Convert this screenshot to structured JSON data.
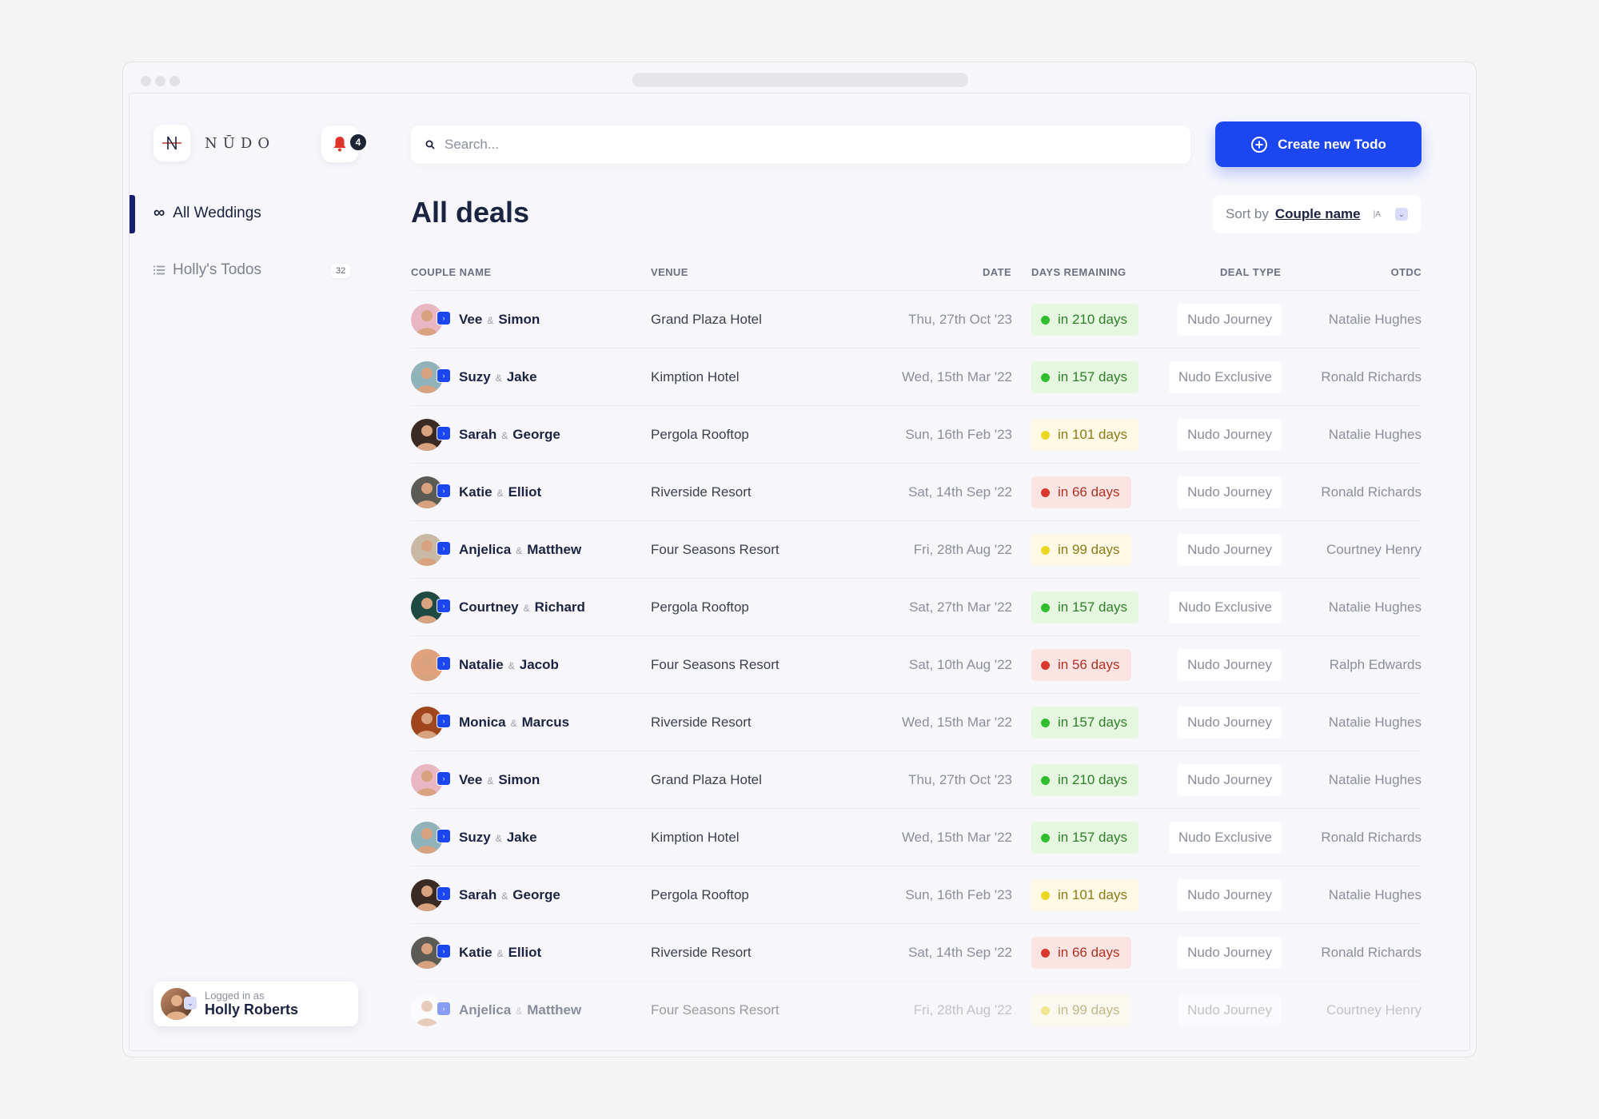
{
  "app": {
    "logo_text": "NŪDO",
    "notifications_count": "4"
  },
  "sidebar": {
    "items": [
      {
        "label": "All Weddings",
        "icon": "infinity-icon",
        "active": true
      },
      {
        "label": "Holly's Todos",
        "icon": "list-icon",
        "count": "32"
      }
    ],
    "user": {
      "logged_in_label": "Logged in as",
      "name": "Holly Roberts"
    }
  },
  "header": {
    "search_placeholder": "Search...",
    "create_button": "Create new Todo"
  },
  "main": {
    "title": "All deals",
    "sort": {
      "label": "Sort by",
      "value": "Couple name",
      "order_icon": "|A"
    }
  },
  "table": {
    "columns": {
      "couple": "COUPLE NAME",
      "venue": "VENUE",
      "date": "DATE",
      "days": "DAYS REMAINING",
      "deal": "DEAL TYPE",
      "otdc": "OTDC"
    },
    "rows": [
      {
        "p1": "Vee",
        "amp": "&",
        "p2": "Simon",
        "venue": "Grand Plaza Hotel",
        "date": "Thu, 27th Oct '23",
        "days": "in 210 days",
        "status": "green",
        "deal": "Nudo Journey",
        "otdc": "Natalie Hughes",
        "avatar_color": "#e9b7c3"
      },
      {
        "p1": "Suzy",
        "amp": "&",
        "p2": "Jake",
        "venue": "Kimption Hotel",
        "date": "Wed, 15th Mar '22",
        "days": "in 157 days",
        "status": "green",
        "deal": "Nudo Exclusive",
        "otdc": "Ronald Richards",
        "avatar_color": "#8fb3b9"
      },
      {
        "p1": "Sarah",
        "amp": "&",
        "p2": "George",
        "venue": "Pergola Rooftop",
        "date": "Sun, 16th Feb '23",
        "days": "in 101 days",
        "status": "yellow",
        "deal": "Nudo Journey",
        "otdc": "Natalie Hughes",
        "avatar_color": "#3a2a24"
      },
      {
        "p1": "Katie",
        "amp": "&",
        "p2": "Elliot",
        "venue": "Riverside Resort",
        "date": "Sat, 14th Sep '22",
        "days": "in 66 days",
        "status": "red",
        "deal": "Nudo Journey",
        "otdc": "Ronald Richards",
        "avatar_color": "#5b5a55"
      },
      {
        "p1": "Anjelica",
        "amp": "&",
        "p2": "Matthew",
        "venue": "Four Seasons Resort",
        "date": "Fri, 28th Aug '22",
        "days": "in 99 days",
        "status": "yellow",
        "deal": "Nudo Journey",
        "otdc": "Courtney Henry",
        "avatar_color": "#c9b8a4"
      },
      {
        "p1": "Courtney",
        "amp": "&",
        "p2": "Richard",
        "venue": "Pergola Rooftop",
        "date": "Sat, 27th Mar '22",
        "days": "in 157 days",
        "status": "green",
        "deal": "Nudo Exclusive",
        "otdc": "Natalie Hughes",
        "avatar_color": "#1f4a44"
      },
      {
        "p1": "Natalie",
        "amp": "&",
        "p2": "Jacob",
        "venue": "Four Seasons Resort",
        "date": "Sat, 10th Aug '22",
        "days": "in 56 days",
        "status": "red",
        "deal": "Nudo Journey",
        "otdc": "Ralph Edwards",
        "avatar_color": "#e0a27c"
      },
      {
        "p1": "Monica",
        "amp": "&",
        "p2": "Marcus",
        "venue": "Riverside Resort",
        "date": "Wed, 15th Mar '22",
        "days": "in 157 days",
        "status": "green",
        "deal": "Nudo Journey",
        "otdc": "Natalie Hughes",
        "avatar_color": "#a0461f"
      },
      {
        "p1": "Vee",
        "amp": "&",
        "p2": "Simon",
        "venue": "Grand Plaza Hotel",
        "date": "Thu, 27th Oct '23",
        "days": "in 210 days",
        "status": "green",
        "deal": "Nudo Journey",
        "otdc": "Natalie Hughes",
        "avatar_color": "#e9b7c3"
      },
      {
        "p1": "Suzy",
        "amp": "&",
        "p2": "Jake",
        "venue": "Kimption Hotel",
        "date": "Wed, 15th Mar '22",
        "days": "in 157 days",
        "status": "green",
        "deal": "Nudo Exclusive",
        "otdc": "Ronald Richards",
        "avatar_color": "#8fb3b9"
      },
      {
        "p1": "Sarah",
        "amp": "&",
        "p2": "George",
        "venue": "Pergola Rooftop",
        "date": "Sun, 16th Feb '23",
        "days": "in 101 days",
        "status": "yellow",
        "deal": "Nudo Journey",
        "otdc": "Natalie Hughes",
        "avatar_color": "#3a2a24"
      },
      {
        "p1": "Katie",
        "amp": "&",
        "p2": "Elliot",
        "venue": "Riverside Resort",
        "date": "Sat, 14th Sep '22",
        "days": "in 66 days",
        "status": "red",
        "deal": "Nudo Journey",
        "otdc": "Ronald Richards",
        "avatar_color": "#5b5a55"
      },
      {
        "p1": "Anjelica",
        "amp": "&",
        "p2": "Matthew",
        "venue": "Four Seasons Resort",
        "date": "Fri, 28th Aug '22",
        "days": "in 99 days",
        "status": "yellow",
        "deal": "Nudo Journey",
        "otdc": "Courtney Henry",
        "avatar_color": "#ffffff",
        "faded": true
      }
    ]
  }
}
